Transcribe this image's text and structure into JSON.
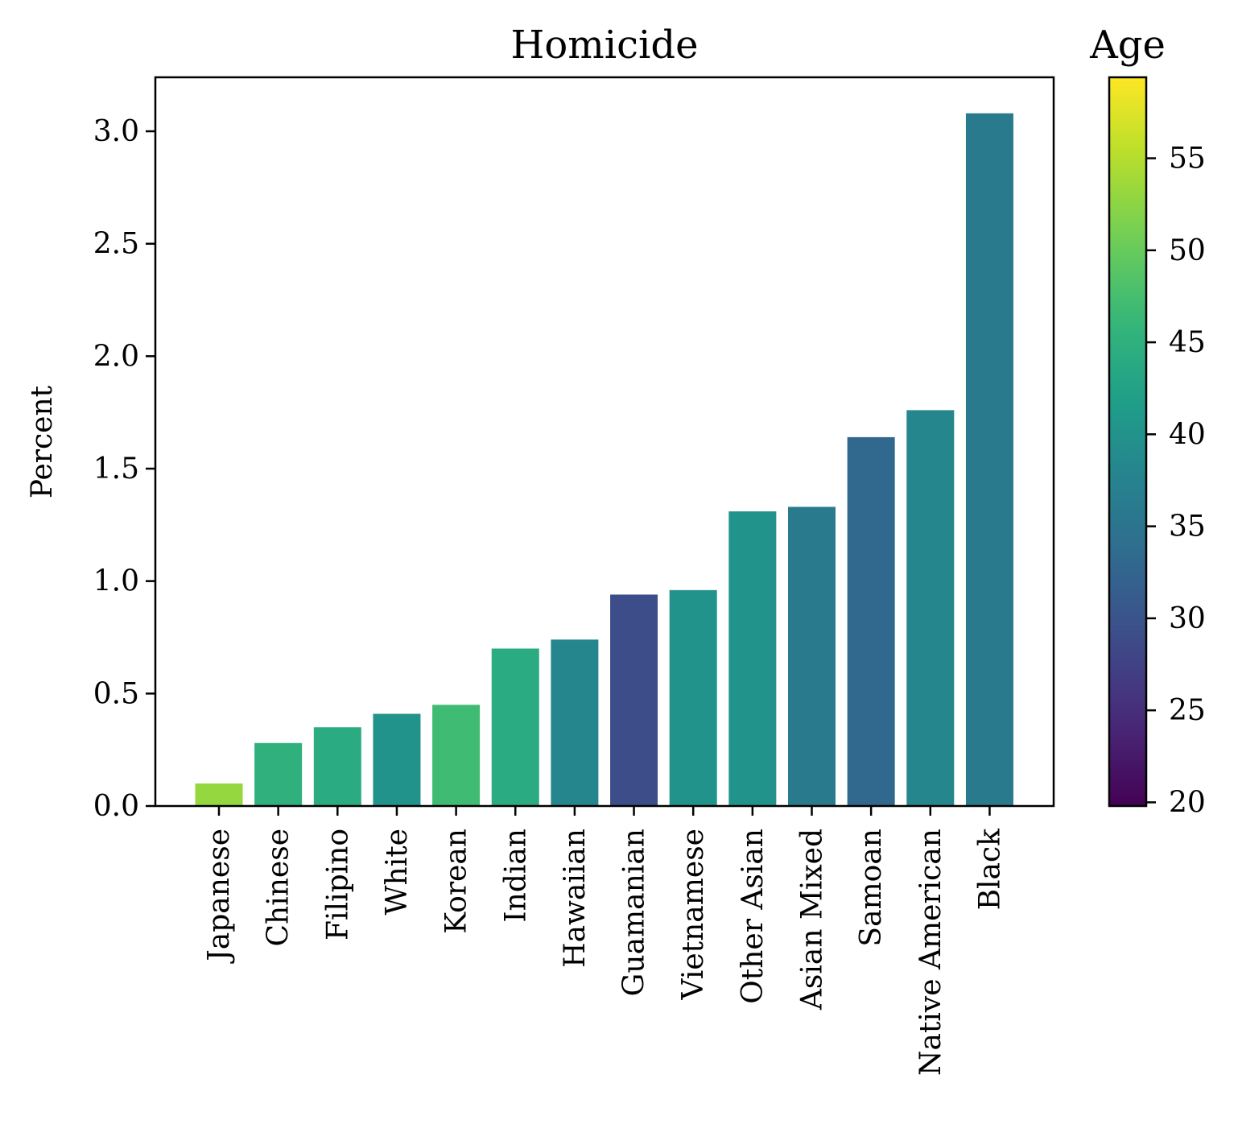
{
  "chart_data": {
    "type": "bar",
    "title": "Homicide",
    "xlabel": "",
    "ylabel": "Percent",
    "ylim": [
      0,
      3.24
    ],
    "yticks": [
      0.0,
      0.5,
      1.0,
      1.5,
      2.0,
      2.5,
      3.0
    ],
    "ytick_labels": [
      "0.0",
      "0.5",
      "1.0",
      "1.5",
      "2.0",
      "2.5",
      "3.0"
    ],
    "grid": false,
    "categories": [
      "Japanese",
      "Chinese",
      "Filipino",
      "White",
      "Korean",
      "Indian",
      "Hawaiian",
      "Guamanian",
      "Vietnamese",
      "Other Asian",
      "Asian Mixed",
      "Samoan",
      "Native American",
      "Black"
    ],
    "values": [
      0.1,
      0.28,
      0.35,
      0.41,
      0.45,
      0.7,
      0.74,
      0.94,
      0.96,
      1.31,
      1.33,
      1.64,
      1.76,
      3.08
    ],
    "color_values": [
      53,
      45,
      44,
      40,
      47,
      44,
      38,
      29,
      40,
      40,
      36,
      33,
      38,
      36
    ],
    "colorbar": {
      "label": "Age",
      "range": [
        19.8,
        59.4
      ],
      "ticks": [
        20,
        25,
        30,
        35,
        40,
        45,
        50,
        55
      ],
      "tick_labels": [
        "20",
        "25",
        "30",
        "35",
        "40",
        "45",
        "50",
        "55"
      ],
      "colormap": "viridis"
    }
  }
}
